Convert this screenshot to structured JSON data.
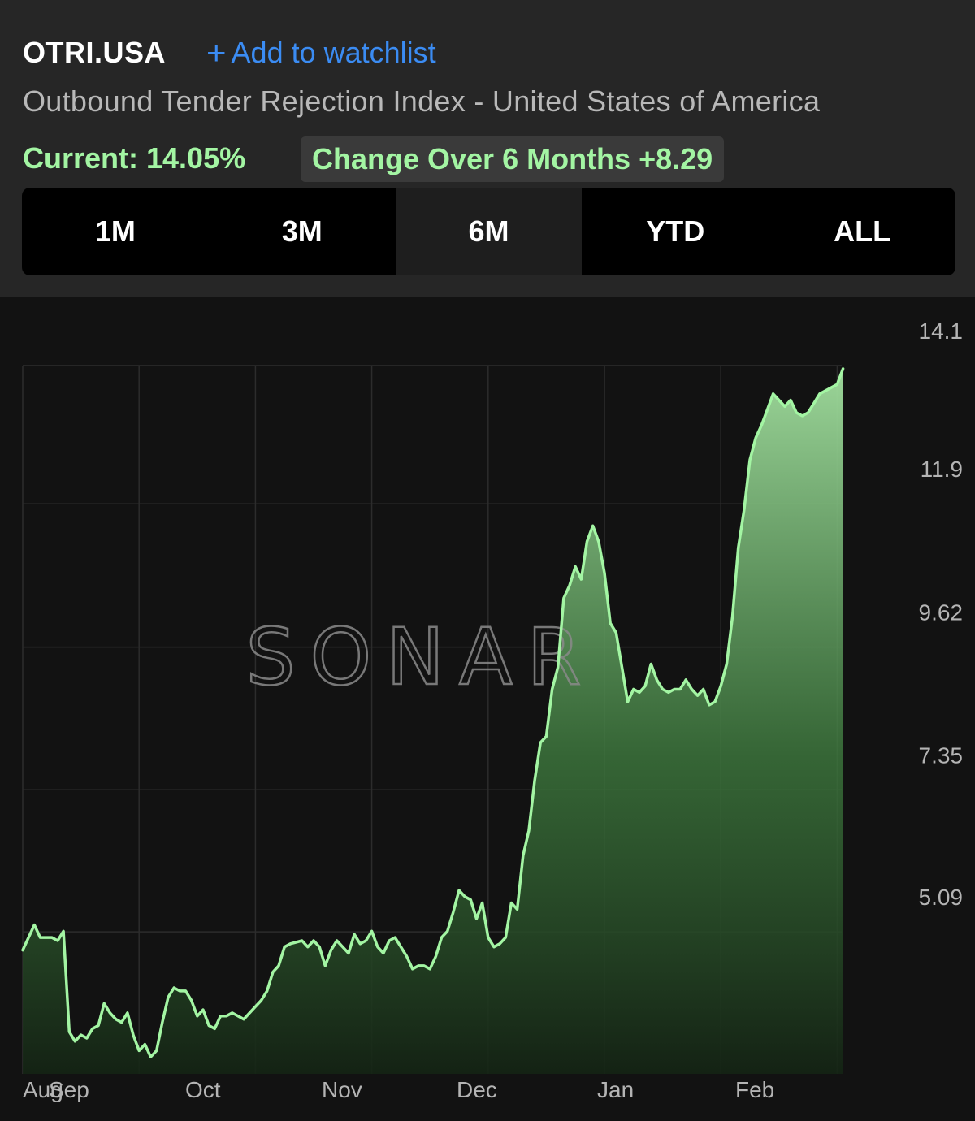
{
  "header": {
    "ticker": "OTRI.USA",
    "watchlist_icon": "plus-icon",
    "watchlist_label": "Add to watchlist",
    "subtitle": "Outbound Tender Rejection Index - United States of America",
    "current_label": "Current: 14.05%",
    "change_label": "Change Over 6 Months +8.29"
  },
  "ranges": [
    {
      "label": "1M",
      "active": false
    },
    {
      "label": "3M",
      "active": false
    },
    {
      "label": "6M",
      "active": true
    },
    {
      "label": "YTD",
      "active": false
    },
    {
      "label": "ALL",
      "active": false
    }
  ],
  "colors": {
    "line": "#a3f5a3",
    "fill_top": "#a3e0a0",
    "fill_bottom": "#142414",
    "accent_link": "#3b8cf3"
  },
  "watermark": "SONAR",
  "chart_data": {
    "type": "area",
    "title": "",
    "xlabel": "",
    "ylabel": "",
    "ylim": [
      2.83,
      14.1
    ],
    "yticks": [
      {
        "value": 14.1,
        "label": "14.1"
      },
      {
        "value": 11.9,
        "label": "11.9"
      },
      {
        "value": 9.62,
        "label": "9.62"
      },
      {
        "value": 7.35,
        "label": "7.35"
      },
      {
        "value": 5.09,
        "label": "5.09"
      }
    ],
    "x_range_days": [
      0,
      198
    ],
    "xticks": [
      {
        "day": 0,
        "label": "Aug"
      },
      {
        "day": 1,
        "label": "Sep"
      },
      {
        "day": 31,
        "label": "Oct"
      },
      {
        "day": 62,
        "label": "Nov"
      },
      {
        "day": 92,
        "label": "Dec"
      },
      {
        "day": 123,
        "label": "Jan"
      },
      {
        "day": 154,
        "label": "Feb"
      }
    ],
    "grid": true,
    "legend": "none",
    "series": [
      {
        "points": [
          [
            0,
            4.8
          ],
          [
            2,
            5.2
          ],
          [
            3,
            5.0
          ],
          [
            5,
            5.0
          ],
          [
            6,
            4.95
          ],
          [
            7,
            5.1
          ],
          [
            8,
            3.5
          ],
          [
            9,
            3.35
          ],
          [
            10,
            3.45
          ],
          [
            11,
            3.4
          ],
          [
            12,
            3.55
          ],
          [
            13,
            3.6
          ],
          [
            14,
            3.95
          ],
          [
            15,
            3.8
          ],
          [
            16,
            3.7
          ],
          [
            17,
            3.65
          ],
          [
            18,
            3.8
          ],
          [
            19,
            3.45
          ],
          [
            20,
            3.2
          ],
          [
            21,
            3.3
          ],
          [
            22,
            3.1
          ],
          [
            23,
            3.2
          ],
          [
            24,
            3.65
          ],
          [
            25,
            4.05
          ],
          [
            26,
            4.2
          ],
          [
            27,
            4.15
          ],
          [
            28,
            4.15
          ],
          [
            29,
            4.0
          ],
          [
            30,
            3.75
          ],
          [
            31,
            3.85
          ],
          [
            32,
            3.6
          ],
          [
            33,
            3.55
          ],
          [
            34,
            3.75
          ],
          [
            35,
            3.75
          ],
          [
            36,
            3.8
          ],
          [
            38,
            3.7
          ],
          [
            39,
            3.8
          ],
          [
            40,
            3.9
          ],
          [
            41,
            4.0
          ],
          [
            42,
            4.15
          ],
          [
            43,
            4.45
          ],
          [
            44,
            4.55
          ],
          [
            45,
            4.85
          ],
          [
            46,
            4.9
          ],
          [
            48,
            4.95
          ],
          [
            49,
            4.85
          ],
          [
            50,
            4.95
          ],
          [
            51,
            4.85
          ],
          [
            52,
            4.55
          ],
          [
            53,
            4.8
          ],
          [
            54,
            4.95
          ],
          [
            55,
            4.85
          ],
          [
            56,
            4.75
          ],
          [
            57,
            5.05
          ],
          [
            58,
            4.9
          ],
          [
            59,
            4.95
          ],
          [
            60,
            5.1
          ],
          [
            61,
            4.85
          ],
          [
            62,
            4.75
          ],
          [
            63,
            4.95
          ],
          [
            64,
            5.0
          ],
          [
            65,
            4.85
          ],
          [
            66,
            4.7
          ],
          [
            67,
            4.5
          ],
          [
            68,
            4.55
          ],
          [
            69,
            4.55
          ],
          [
            70,
            4.5
          ],
          [
            71,
            4.7
          ],
          [
            72,
            5.0
          ],
          [
            73,
            5.1
          ],
          [
            74,
            5.4
          ],
          [
            75,
            5.75
          ],
          [
            76,
            5.65
          ],
          [
            77,
            5.6
          ],
          [
            78,
            5.3
          ],
          [
            79,
            5.55
          ],
          [
            80,
            5.0
          ],
          [
            81,
            4.85
          ],
          [
            82,
            4.9
          ],
          [
            83,
            5.0
          ],
          [
            84,
            5.55
          ],
          [
            85,
            5.45
          ],
          [
            86,
            6.3
          ],
          [
            87,
            6.7
          ],
          [
            88,
            7.5
          ],
          [
            89,
            8.1
          ],
          [
            90,
            8.2
          ],
          [
            91,
            8.95
          ],
          [
            92,
            9.3
          ],
          [
            93,
            10.4
          ],
          [
            94,
            10.6
          ],
          [
            95,
            10.9
          ],
          [
            96,
            10.7
          ],
          [
            97,
            11.3
          ],
          [
            98,
            11.55
          ],
          [
            99,
            11.3
          ],
          [
            100,
            10.8
          ],
          [
            101,
            10.0
          ],
          [
            102,
            9.85
          ],
          [
            103,
            9.3
          ],
          [
            104,
            8.75
          ],
          [
            105,
            8.95
          ],
          [
            106,
            8.9
          ],
          [
            107,
            9.0
          ],
          [
            108,
            9.35
          ],
          [
            109,
            9.1
          ],
          [
            110,
            8.95
          ],
          [
            111,
            8.9
          ],
          [
            112,
            8.95
          ],
          [
            113,
            8.95
          ],
          [
            114,
            9.1
          ],
          [
            115,
            8.95
          ],
          [
            116,
            8.85
          ],
          [
            117,
            8.95
          ],
          [
            118,
            8.7
          ],
          [
            119,
            8.75
          ],
          [
            120,
            9.0
          ],
          [
            121,
            9.35
          ],
          [
            122,
            10.1
          ],
          [
            123,
            11.2
          ],
          [
            124,
            11.8
          ],
          [
            125,
            12.6
          ],
          [
            126,
            12.95
          ],
          [
            127,
            13.15
          ],
          [
            128,
            13.4
          ],
          [
            129,
            13.65
          ],
          [
            130,
            13.55
          ],
          [
            131,
            13.45
          ],
          [
            132,
            13.55
          ],
          [
            133,
            13.35
          ],
          [
            134,
            13.3
          ],
          [
            135,
            13.35
          ],
          [
            136,
            13.5
          ],
          [
            137,
            13.65
          ],
          [
            138,
            13.7
          ],
          [
            139,
            13.75
          ],
          [
            140,
            13.8
          ],
          [
            141,
            14.05
          ]
        ]
      }
    ]
  }
}
